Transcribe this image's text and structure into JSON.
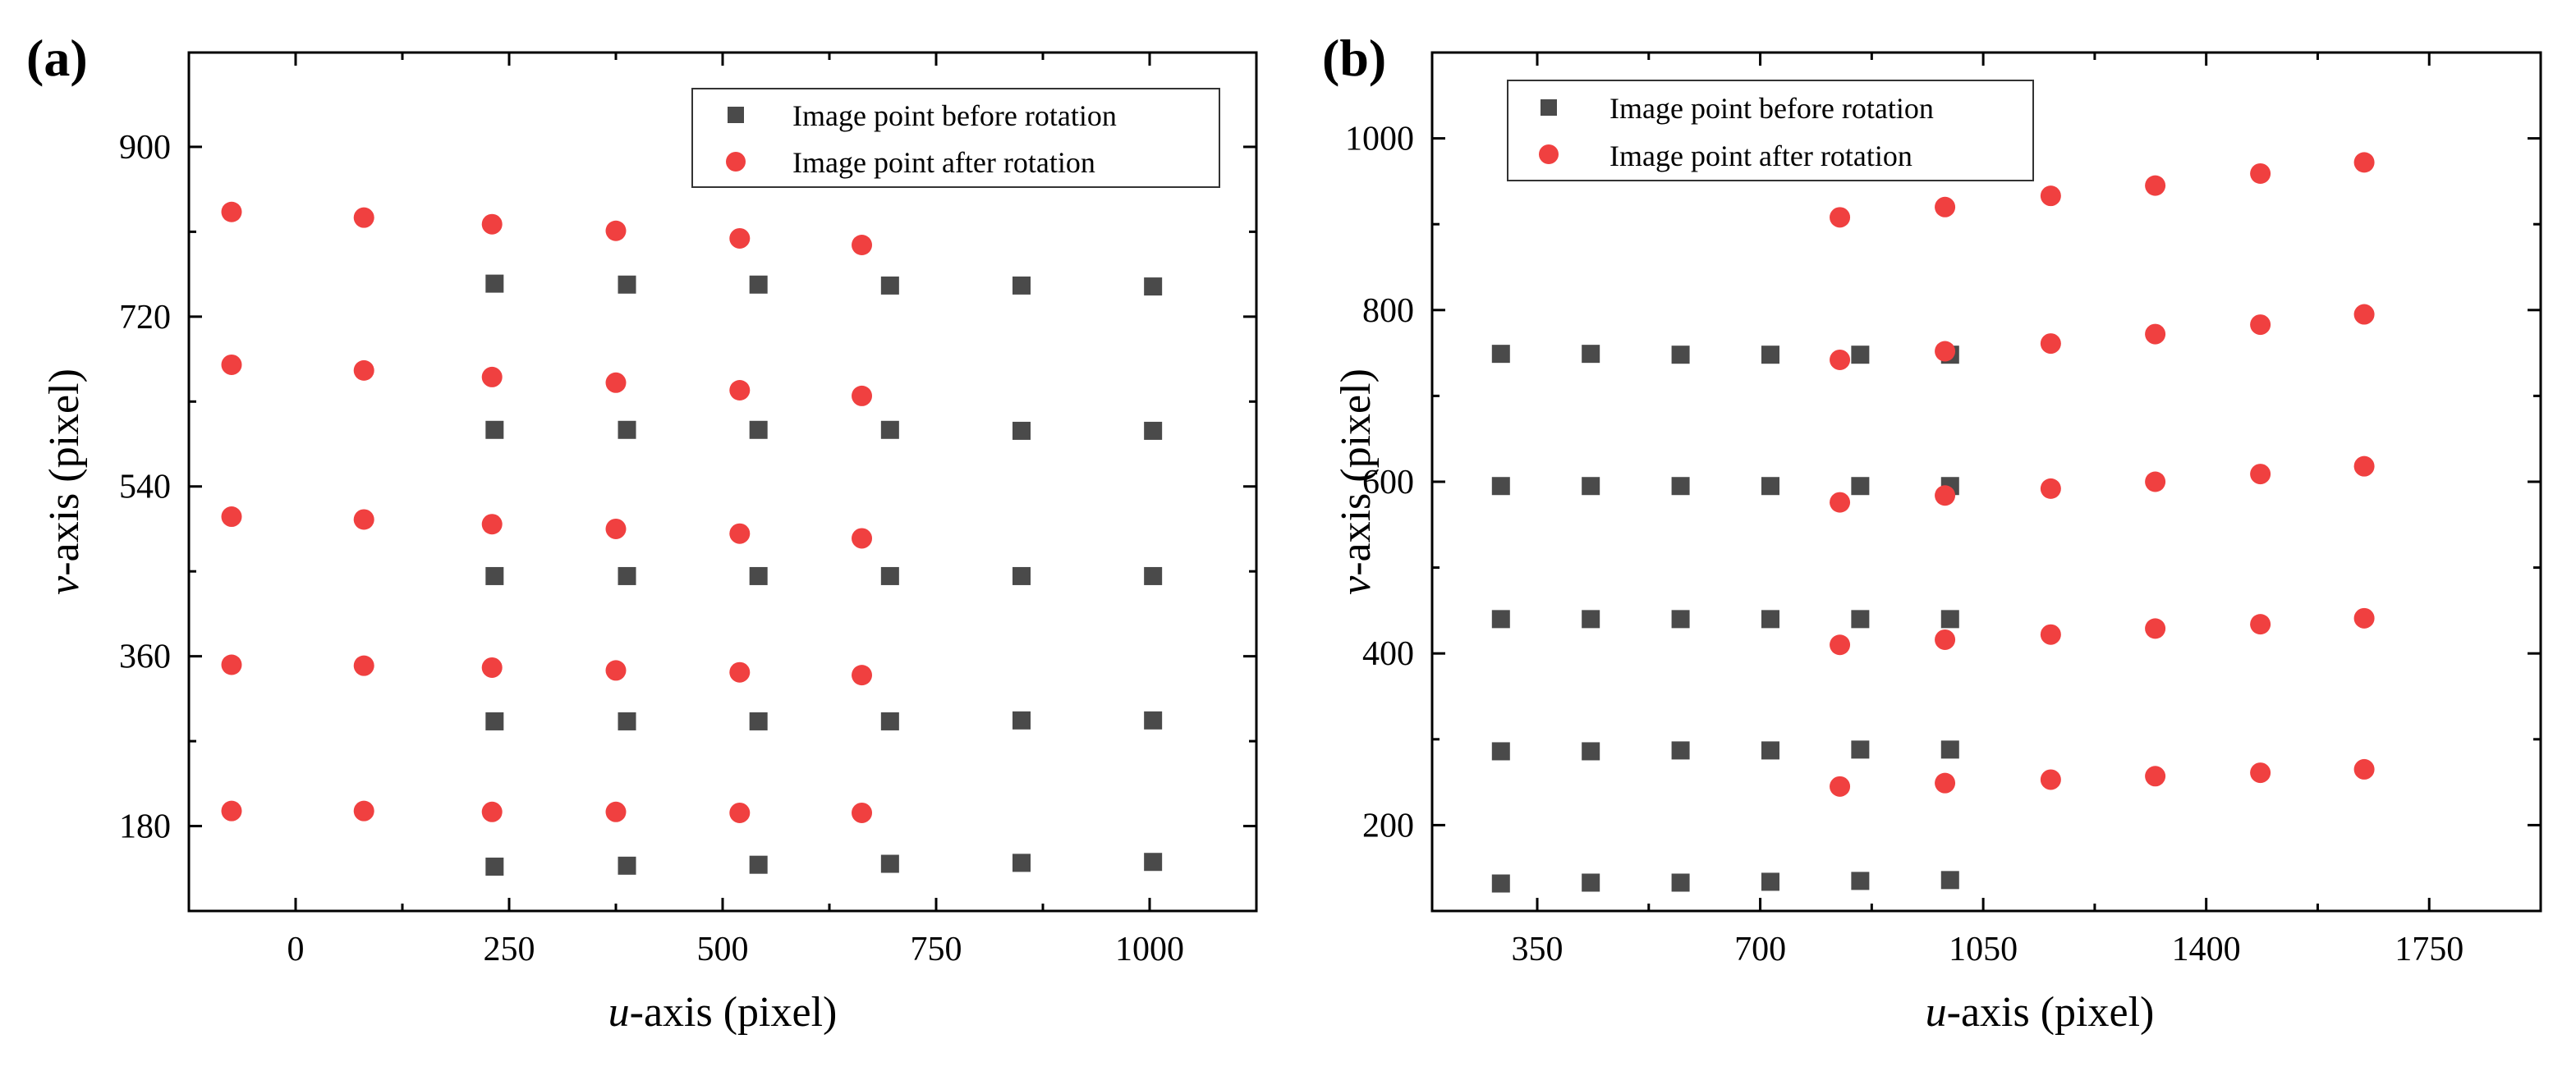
{
  "chart_data": [
    {
      "type": "scatter",
      "panel_label": "(a)",
      "xlabel_italic": "u",
      "xlabel_rest": "-axis (pixel)",
      "ylabel_italic": "v",
      "ylabel_rest": "-axis (pixel)",
      "xlim": [
        -125,
        1125
      ],
      "ylim": [
        90,
        1000
      ],
      "xticks": [
        0,
        250,
        500,
        750,
        1000
      ],
      "xtick_labels": [
        "0",
        "250",
        "500",
        "750",
        "1000"
      ],
      "xminor": [
        125,
        375,
        625,
        875
      ],
      "yticks": [
        180,
        360,
        540,
        720,
        900
      ],
      "ytick_labels": [
        "180",
        "360",
        "540",
        "720",
        "900"
      ],
      "yminor": [
        270,
        450,
        630,
        810
      ],
      "legend_position": "top-right",
      "series": [
        {
          "name": "Image point before rotation",
          "marker": "square",
          "color": "#4a4a4a",
          "points": [
            [
              233,
              755
            ],
            [
              388,
              754
            ],
            [
              542,
              754
            ],
            [
              696,
              753
            ],
            [
              850,
              753
            ],
            [
              1004,
              752
            ],
            [
              233,
              600
            ],
            [
              388,
              600
            ],
            [
              542,
              600
            ],
            [
              696,
              600
            ],
            [
              850,
              599
            ],
            [
              1004,
              599
            ],
            [
              233,
              445
            ],
            [
              388,
              445
            ],
            [
              542,
              445
            ],
            [
              696,
              445
            ],
            [
              850,
              445
            ],
            [
              1004,
              445
            ],
            [
              233,
              291
            ],
            [
              388,
              291
            ],
            [
              542,
              291
            ],
            [
              696,
              291
            ],
            [
              850,
              292
            ],
            [
              1004,
              292
            ],
            [
              233,
              137
            ],
            [
              388,
              138
            ],
            [
              542,
              139
            ],
            [
              696,
              140
            ],
            [
              850,
              141
            ],
            [
              1004,
              142
            ]
          ]
        },
        {
          "name": "Image point after rotation",
          "marker": "circle",
          "color": "#f04040",
          "points": [
            [
              -75,
              831
            ],
            [
              80,
              825
            ],
            [
              230,
              818
            ],
            [
              375,
              811
            ],
            [
              520,
              803
            ],
            [
              663,
              796
            ],
            [
              -75,
              669
            ],
            [
              80,
              663
            ],
            [
              230,
              656
            ],
            [
              375,
              650
            ],
            [
              520,
              642
            ],
            [
              663,
              636
            ],
            [
              -75,
              508
            ],
            [
              80,
              505
            ],
            [
              230,
              500
            ],
            [
              375,
              495
            ],
            [
              520,
              490
            ],
            [
              663,
              485
            ],
            [
              -75,
              351
            ],
            [
              80,
              350
            ],
            [
              230,
              348
            ],
            [
              375,
              345
            ],
            [
              520,
              343
            ],
            [
              663,
              340
            ],
            [
              -75,
              196
            ],
            [
              80,
              196
            ],
            [
              230,
              195
            ],
            [
              375,
              195
            ],
            [
              520,
              194
            ],
            [
              663,
              194
            ]
          ]
        }
      ]
    },
    {
      "type": "scatter",
      "panel_label": "(b)",
      "xlabel_italic": "u",
      "xlabel_rest": "-axis (pixel)",
      "ylabel_italic": "v",
      "ylabel_rest": "-axis (pixel)",
      "xlim": [
        185,
        1925
      ],
      "ylim": [
        100,
        1100
      ],
      "xticks": [
        350,
        700,
        1050,
        1400,
        1750
      ],
      "xtick_labels": [
        "350",
        "700",
        "1050",
        "1400",
        "1750"
      ],
      "xminor": [
        525,
        875,
        1225,
        1575
      ],
      "yticks": [
        200,
        400,
        600,
        800,
        1000
      ],
      "ytick_labels": [
        "200",
        "400",
        "600",
        "800",
        "1000"
      ],
      "yminor": [
        300,
        500,
        700,
        900
      ],
      "legend_position": "top-left",
      "series": [
        {
          "name": "Image point before rotation",
          "marker": "square",
          "color": "#4a4a4a",
          "points": [
            [
              293,
              749
            ],
            [
              434,
              749
            ],
            [
              575,
              748
            ],
            [
              716,
              748
            ],
            [
              857,
              748
            ],
            [
              998,
              748
            ],
            [
              293,
              595
            ],
            [
              434,
              595
            ],
            [
              575,
              595
            ],
            [
              716,
              595
            ],
            [
              857,
              595
            ],
            [
              998,
              595
            ],
            [
              293,
              440
            ],
            [
              434,
              440
            ],
            [
              575,
              440
            ],
            [
              716,
              440
            ],
            [
              857,
              440
            ],
            [
              998,
              440
            ],
            [
              293,
              286
            ],
            [
              434,
              286
            ],
            [
              575,
              287
            ],
            [
              716,
              287
            ],
            [
              857,
              288
            ],
            [
              998,
              288
            ],
            [
              293,
              132
            ],
            [
              434,
              133
            ],
            [
              575,
              133
            ],
            [
              716,
              134
            ],
            [
              857,
              135
            ],
            [
              998,
              136
            ]
          ]
        },
        {
          "name": "Image point after rotation",
          "marker": "circle",
          "color": "#f04040",
          "points": [
            [
              825,
              908
            ],
            [
              990,
              920
            ],
            [
              1156,
              933
            ],
            [
              1320,
              945
            ],
            [
              1485,
              959
            ],
            [
              1648,
              972
            ],
            [
              825,
              742
            ],
            [
              990,
              752
            ],
            [
              1156,
              761
            ],
            [
              1320,
              772
            ],
            [
              1485,
              783
            ],
            [
              1648,
              795
            ],
            [
              825,
              576
            ],
            [
              990,
              584
            ],
            [
              1156,
              592
            ],
            [
              1320,
              600
            ],
            [
              1485,
              609
            ],
            [
              1648,
              618
            ],
            [
              825,
              410
            ],
            [
              990,
              416
            ],
            [
              1156,
              422
            ],
            [
              1320,
              429
            ],
            [
              1485,
              434
            ],
            [
              1648,
              441
            ],
            [
              825,
              245
            ],
            [
              990,
              249
            ],
            [
              1156,
              253
            ],
            [
              1320,
              257
            ],
            [
              1485,
              261
            ],
            [
              1648,
              265
            ]
          ]
        }
      ]
    }
  ]
}
